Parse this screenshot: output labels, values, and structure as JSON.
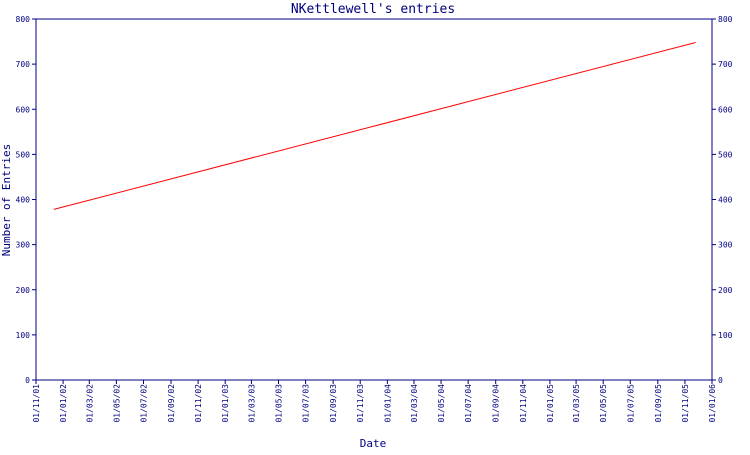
{
  "colors": {
    "axis": "#000080",
    "series": "#ff0000",
    "background": "#ffffff"
  },
  "chart_data": {
    "type": "line",
    "title": "NKettlewell's entries",
    "xlabel": "Date",
    "ylabel": "Number of Entries",
    "xlim": [
      "2001-11-01",
      "2006-01-01"
    ],
    "ylim": [
      0,
      800
    ],
    "grid": false,
    "y_ticks": [
      0,
      100,
      200,
      300,
      400,
      500,
      600,
      700,
      800
    ],
    "x_ticks": [
      {
        "label": "01/11/01",
        "date": "2001-11-01"
      },
      {
        "label": "01/01/02",
        "date": "2002-01-01"
      },
      {
        "label": "01/03/02",
        "date": "2002-03-01"
      },
      {
        "label": "01/05/02",
        "date": "2002-05-01"
      },
      {
        "label": "01/07/02",
        "date": "2002-07-01"
      },
      {
        "label": "01/09/02",
        "date": "2002-09-01"
      },
      {
        "label": "01/11/02",
        "date": "2002-11-01"
      },
      {
        "label": "01/01/03",
        "date": "2003-01-01"
      },
      {
        "label": "01/03/03",
        "date": "2003-03-01"
      },
      {
        "label": "01/05/03",
        "date": "2003-05-01"
      },
      {
        "label": "01/07/03",
        "date": "2003-07-01"
      },
      {
        "label": "01/09/03",
        "date": "2003-09-01"
      },
      {
        "label": "01/11/03",
        "date": "2003-11-01"
      },
      {
        "label": "01/01/04",
        "date": "2004-01-01"
      },
      {
        "label": "01/03/04",
        "date": "2004-03-01"
      },
      {
        "label": "01/05/04",
        "date": "2004-05-01"
      },
      {
        "label": "01/07/04",
        "date": "2004-07-01"
      },
      {
        "label": "01/09/04",
        "date": "2004-09-01"
      },
      {
        "label": "01/11/04",
        "date": "2004-11-01"
      },
      {
        "label": "01/01/05",
        "date": "2005-01-01"
      },
      {
        "label": "01/03/05",
        "date": "2005-03-01"
      },
      {
        "label": "01/05/05",
        "date": "2005-05-01"
      },
      {
        "label": "01/07/05",
        "date": "2005-07-01"
      },
      {
        "label": "01/09/05",
        "date": "2005-09-01"
      },
      {
        "label": "01/11/05",
        "date": "2005-11-01"
      },
      {
        "label": "01/01/06",
        "date": "2006-01-01"
      }
    ],
    "series": [
      {
        "color": "#ff0000",
        "points": [
          {
            "x": "2001-12-11",
            "y": 378
          },
          {
            "x": "2005-11-25",
            "y": 748
          }
        ]
      }
    ]
  }
}
